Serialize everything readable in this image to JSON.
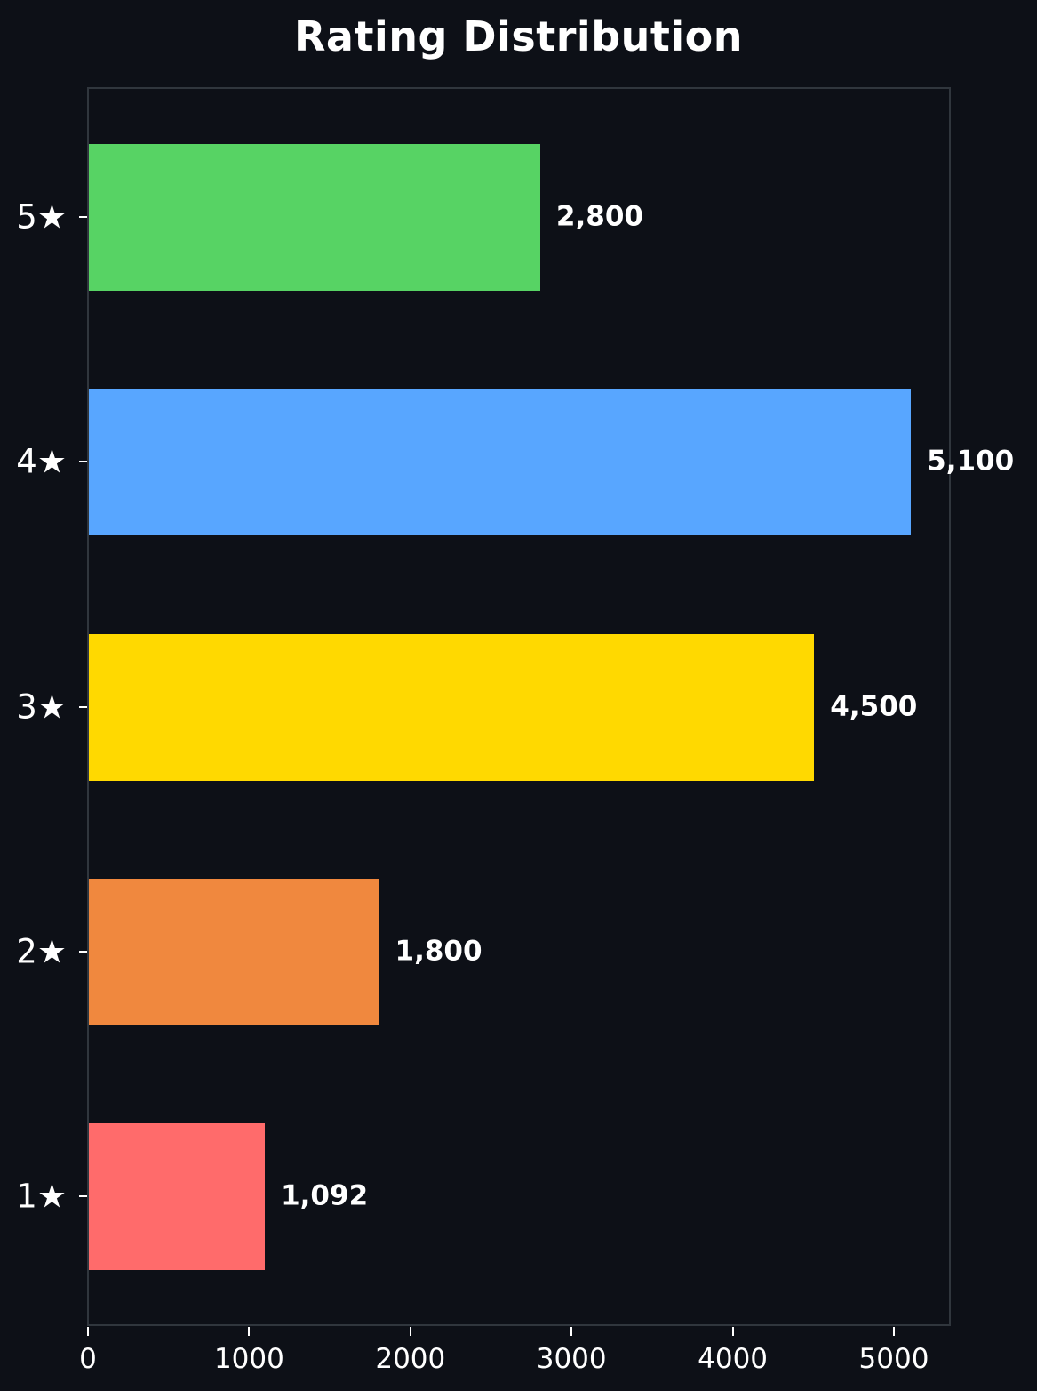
{
  "chart_data": {
    "type": "bar",
    "orientation": "horizontal",
    "title": "Rating Distribution",
    "xlabel": "",
    "ylabel": "",
    "categories": [
      "5★",
      "4★",
      "3★",
      "2★",
      "1★"
    ],
    "values": [
      2800,
      5100,
      4500,
      1800,
      1092
    ],
    "value_labels": [
      "2,800",
      "5,100",
      "4,500",
      "1,800",
      "1,092"
    ],
    "colors": [
      "#57d364",
      "#58a6ff",
      "#ffd900",
      "#f0883e",
      "#ff6b6b"
    ],
    "xlim": [
      0,
      5350
    ],
    "x_ticks": [
      0,
      1000,
      2000,
      3000,
      4000,
      5000
    ],
    "x_tick_labels": [
      "0",
      "1000",
      "2000",
      "3000",
      "4000",
      "5000"
    ],
    "grid": false,
    "legend": null,
    "background": "#0d1017",
    "frame_color": "#30363d"
  },
  "title": "Rating Distribution",
  "bars": [
    {
      "label": "5★",
      "value_label": "2,800"
    },
    {
      "label": "4★",
      "value_label": "5,100"
    },
    {
      "label": "3★",
      "value_label": "4,500"
    },
    {
      "label": "2★",
      "value_label": "1,800"
    },
    {
      "label": "1★",
      "value_label": "1,092"
    }
  ],
  "x_axis": {
    "ticks": [
      "0",
      "1000",
      "2000",
      "3000",
      "4000",
      "5000"
    ]
  }
}
